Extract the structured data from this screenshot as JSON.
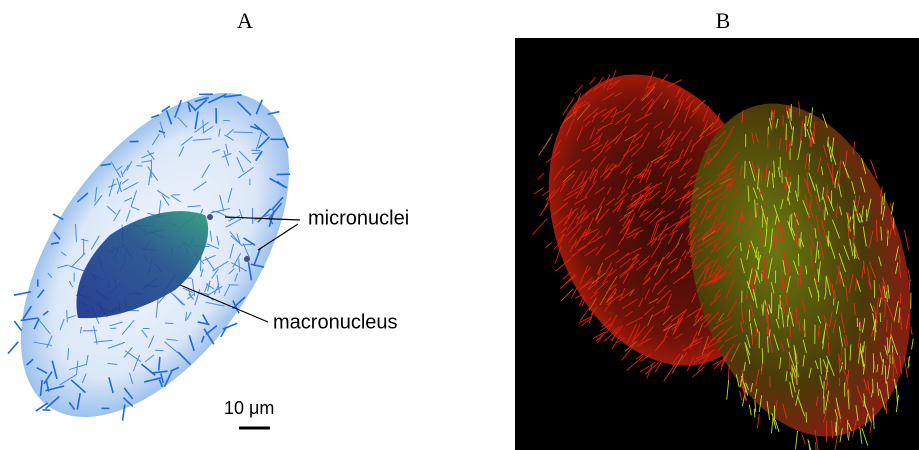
{
  "panels": [
    {
      "label": "A",
      "annotations": {
        "micronuclei": "micronuclei",
        "macronucleus": "macronucleus"
      },
      "scale_bar": "10 μm"
    },
    {
      "label": "B"
    }
  ]
}
